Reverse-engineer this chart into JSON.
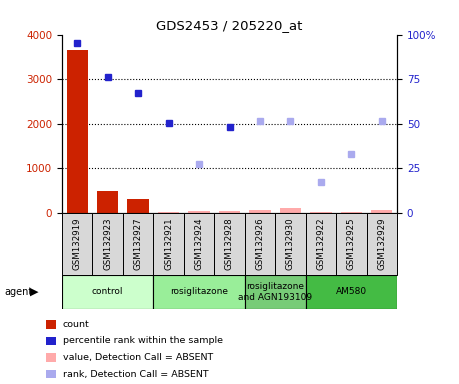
{
  "title": "GDS2453 / 205220_at",
  "samples": [
    "GSM132919",
    "GSM132923",
    "GSM132927",
    "GSM132921",
    "GSM132924",
    "GSM132928",
    "GSM132926",
    "GSM132930",
    "GSM132922",
    "GSM132925",
    "GSM132929"
  ],
  "bar_values": [
    3660,
    490,
    320,
    30,
    50,
    40,
    80,
    120,
    30,
    20,
    80
  ],
  "bar_absent": [
    false,
    false,
    false,
    true,
    true,
    true,
    true,
    true,
    true,
    true,
    true
  ],
  "rank_values": [
    95,
    76.5,
    67,
    50.5,
    27.5,
    48.5,
    51.5,
    51.5,
    17.5,
    33,
    51.5
  ],
  "rank_absent": [
    false,
    false,
    false,
    false,
    true,
    false,
    true,
    true,
    true,
    true,
    true
  ],
  "groups": [
    {
      "label": "control",
      "start": 0,
      "end": 3,
      "color": "#ccffcc"
    },
    {
      "label": "rosiglitazone",
      "start": 3,
      "end": 6,
      "color": "#99ee99"
    },
    {
      "label": "rosiglitazone\nand AGN193109",
      "start": 6,
      "end": 8,
      "color": "#77cc77"
    },
    {
      "label": "AM580",
      "start": 8,
      "end": 11,
      "color": "#44bb44"
    }
  ],
  "ylim_left": [
    0,
    4000
  ],
  "ylim_right": [
    0,
    100
  ],
  "yticks_left": [
    0,
    1000,
    2000,
    3000,
    4000
  ],
  "ytick_labels_left": [
    "0",
    "1000",
    "2000",
    "3000",
    "4000"
  ],
  "yticks_right": [
    0,
    25,
    50,
    75,
    100
  ],
  "ytick_labels_right": [
    "0",
    "25",
    "50",
    "75",
    "100%"
  ],
  "color_bar_present": "#cc2200",
  "color_bar_absent": "#ffaaaa",
  "color_rank_present": "#2222cc",
  "color_rank_absent": "#aaaaee",
  "legend_items": [
    {
      "color": "#cc2200",
      "label": "count"
    },
    {
      "color": "#2222cc",
      "label": "percentile rank within the sample"
    },
    {
      "color": "#ffaaaa",
      "label": "value, Detection Call = ABSENT"
    },
    {
      "color": "#aaaaee",
      "label": "rank, Detection Call = ABSENT"
    }
  ]
}
